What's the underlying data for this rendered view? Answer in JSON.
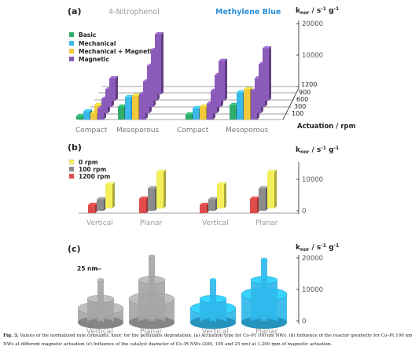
{
  "panel_a": {
    "label": "(a)",
    "title_left": "4-Nitrophenol",
    "title_right": "Methylene Blue",
    "y_title": "k",
    "y_title_sub": "nor",
    "y_title_unit": " / s",
    "y_title_sup": "-1",
    "y_title_unit2": " g",
    "y_title_sup2": "-1",
    "y_ticks": [
      "20000",
      "10000",
      "0"
    ],
    "depth_ticks": [
      "1200",
      "900",
      "600",
      "300",
      "100"
    ],
    "depth_title": "Actuation / rpm",
    "legend": [
      "Basic",
      "Mechanical",
      "Mechanical + Magnetic",
      "Magnetic"
    ],
    "categories": [
      "Compact",
      "Mesoporous",
      "Compact",
      "Mesoporous"
    ]
  },
  "panel_b": {
    "label": "(b)",
    "y_title": "k",
    "y_title_sub": "nor",
    "y_title_unit": " / s",
    "y_title_sup": "-1",
    "y_title_unit2": " g",
    "y_title_sup2": "-1",
    "y_ticks": [
      "10000",
      "0"
    ],
    "legend": [
      "0 rpm",
      "100 rpm",
      "1200 rpm"
    ],
    "categories": [
      "Vertical",
      "Planar",
      "Vertical",
      "Planar"
    ]
  },
  "panel_c": {
    "label": "(c)",
    "y_title": "k",
    "y_title_sub": "nor",
    "y_title_unit": " / s",
    "y_title_sup": "-1",
    "y_title_unit2": " g",
    "y_title_sup2": "-1",
    "y_ticks": [
      "20000",
      "10000",
      "0"
    ],
    "size_label": "25 nm",
    "categories": [
      "Vertical",
      "Planar",
      "Vertical",
      "Planar"
    ]
  },
  "colors": {
    "basic": "#2fae6b",
    "mechanical": "#3bb7ea",
    "mech_magnetic": "#f2c93a",
    "magnetic": "#8a5bb8",
    "rpm0": "#f3ef5a",
    "rpm100": "#8c8c8c",
    "rpm1200": "#e04c4c",
    "gray_cyl": "#a6a6a6",
    "blue_cyl": "#2fb8ec"
  },
  "chart_data": [
    {
      "panel": "(a)",
      "type": "bar",
      "ylabel": "k nor / s-1 g-1",
      "ylim": [
        0,
        20000
      ],
      "depth_axis_label": "Actuation / rpm",
      "depth_values": [
        100,
        300,
        600,
        900,
        1200
      ],
      "groups": [
        {
          "pollutant": "4-Nitrophenol",
          "category": "Compact",
          "series": [
            {
              "name": "Basic",
              "values": [
                1000
              ]
            },
            {
              "name": "Mechanical",
              "values": [
                2500
              ]
            },
            {
              "name": "Mechanical + Magnetic",
              "values": [
                2000,
                2500
              ]
            },
            {
              "name": "Magnetic",
              "values": [
                3500,
                4500,
                5500,
                7000
              ]
            }
          ]
        },
        {
          "pollutant": "4-Nitrophenol",
          "category": "Mesoporous",
          "series": [
            {
              "name": "Basic",
              "values": [
                4000
              ]
            },
            {
              "name": "Mechanical",
              "values": [
                7000
              ]
            },
            {
              "name": "Mechanical + Magnetic",
              "values": [
                7500
              ]
            },
            {
              "name": "Magnetic",
              "values": [
                8000,
                10000,
                13000,
                16000,
                19000
              ]
            }
          ]
        },
        {
          "pollutant": "Methylene Blue",
          "category": "Compact",
          "series": [
            {
              "name": "Basic",
              "values": [
                1500
              ]
            },
            {
              "name": "Mechanical",
              "values": [
                3500
              ]
            },
            {
              "name": "Mechanical + Magnetic",
              "values": [
                4000
              ]
            },
            {
              "name": "Magnetic",
              "values": [
                5000,
                7000,
                10000,
                12500
              ]
            }
          ]
        },
        {
          "pollutant": "Methylene Blue",
          "category": "Mesoporous",
          "series": [
            {
              "name": "Basic",
              "values": [
                4500
              ]
            },
            {
              "name": "Mechanical",
              "values": [
                8500
              ]
            },
            {
              "name": "Mechanical + Magnetic",
              "values": [
                9500
              ]
            },
            {
              "name": "Magnetic",
              "values": [
                9000,
                11000,
                13500,
                16500
              ]
            }
          ]
        }
      ]
    },
    {
      "panel": "(b)",
      "type": "bar",
      "ylabel": "k nor / s-1 g-1",
      "ylim": [
        0,
        12000
      ],
      "categories": [
        "Vertical",
        "Planar",
        "Vertical",
        "Planar"
      ],
      "series": [
        {
          "name": "0 rpm",
          "values": [
            7500,
            11500,
            7500,
            11500
          ]
        },
        {
          "name": "100 rpm",
          "values": [
            3500,
            7000,
            3500,
            7000
          ]
        },
        {
          "name": "1200 rpm",
          "values": [
            2500,
            4500,
            2500,
            4500
          ]
        }
      ]
    },
    {
      "panel": "(c)",
      "type": "bar",
      "ylabel": "k nor / s-1 g-1",
      "ylim": [
        0,
        20000
      ],
      "categories": [
        "Vertical",
        "Planar",
        "Vertical",
        "Planar"
      ],
      "catalyst_diameter_nm": [
        200,
        100,
        25
      ],
      "series": [
        {
          "name": "200 nm",
          "values": [
            4500,
            7500,
            4500,
            9000
          ]
        },
        {
          "name": "100 nm",
          "values": [
            7500,
            13500,
            7500,
            13500
          ]
        },
        {
          "name": "25 nm",
          "values": [
            13500,
            21000,
            13500,
            20000
          ]
        }
      ]
    }
  ],
  "caption": {
    "lead": "Fig. 3.",
    "text": " Values of the normalized rate constants, knor, for the pollutants degradation. (a) Actuation type for Co–Pt 100 nm NWs. (b) Influence of the reactor geometry for Co–Pt 100 nm NWs at different magnetic actuation (c) Influence of the catalyst diameter of Co–Pt NWs (200, 100 and 25 nm) at 1,200 rpm of magnetic actuation."
  }
}
